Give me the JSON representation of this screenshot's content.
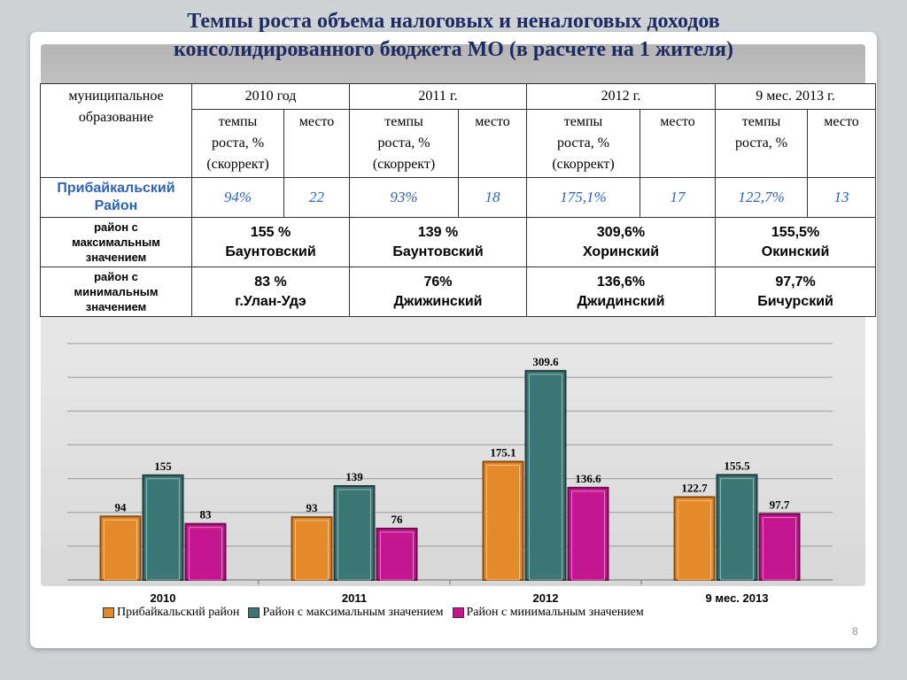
{
  "title_lines": [
    "Темпы роста объема налоговых и неналоговых доходов",
    "консолидированного бюджета МО  (в расчете на 1 жителя)"
  ],
  "table": {
    "corner_label": [
      "муниципальное",
      "образование"
    ],
    "years": [
      "2010 год",
      "2011 г.",
      "2012 г.",
      "9 мес. 2013 г."
    ],
    "sub_rate": [
      "темпы",
      "роста, %",
      "(скоррект)"
    ],
    "sub_rate_last": [
      "темпы",
      "роста, %"
    ],
    "sub_place": "место",
    "pribaikal": {
      "name": [
        "Прибайкальский",
        "Район"
      ],
      "cells": [
        "94%",
        "22",
        "93%",
        "18",
        "175,1%",
        "17",
        "122,7%",
        "13"
      ]
    },
    "max_row": {
      "label": [
        "район с",
        "максимальным",
        "значением"
      ],
      "cells": [
        {
          "value": "155  %",
          "region": "Баунтовский"
        },
        {
          "value": "139 %",
          "region": "Баунтовский"
        },
        {
          "value": "309,6%",
          "region": "Хоринский"
        },
        {
          "value": "155,5%",
          "region": "Окинский"
        }
      ]
    },
    "min_row": {
      "label": [
        "район с",
        "минимальным",
        "значением"
      ],
      "cells": [
        {
          "value": "83 %",
          "region": "г.Улан-Удэ"
        },
        {
          "value": "76%",
          "region": "Джижинский"
        },
        {
          "value": "136,6%",
          "region": "Джидинский"
        },
        {
          "value": "97,7%",
          "region": "Бичурский"
        }
      ]
    }
  },
  "chart_data": {
    "type": "bar",
    "categories": [
      "2010",
      "2011",
      "2012",
      "9 мес. 2013"
    ],
    "series": [
      {
        "name": "Прибайкальский район",
        "values": [
          94,
          93,
          175.1,
          122.7
        ],
        "labels": [
          "94",
          "93",
          "175.1",
          "122.7"
        ],
        "color": "#e48a2a"
      },
      {
        "name": "Район с максимальным значением",
        "values": [
          155,
          139,
          309.6,
          155.5
        ],
        "labels": [
          "155",
          "139",
          "309.6",
          "155.5"
        ],
        "color": "#3c7675"
      },
      {
        "name": "Район с минимальным значением",
        "values": [
          83,
          76,
          136.6,
          97.7
        ],
        "labels": [
          "83",
          "76",
          "136.6",
          "97.7"
        ],
        "color": "#c4168f"
      }
    ],
    "ylim": [
      0,
      350
    ],
    "grid": true,
    "legend_position": "bottom"
  },
  "page_number": "8"
}
